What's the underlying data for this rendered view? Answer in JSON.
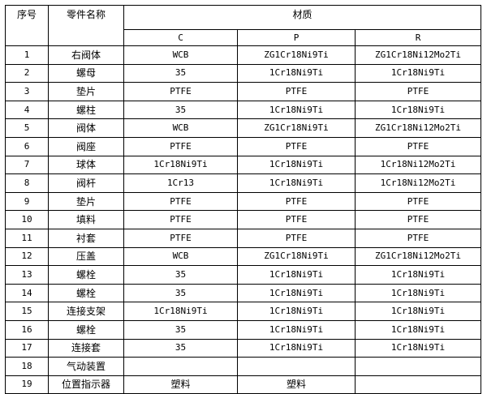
{
  "headers": {
    "index": "序号",
    "part_name": "零件名称",
    "material": "材质",
    "grades": [
      "C",
      "P",
      "R"
    ]
  },
  "rows": [
    {
      "no": "1",
      "name": "右阀体",
      "c": "WCB",
      "p": "ZG1Cr18Ni9Ti",
      "r": "ZG1Cr18Ni12Mo2Ti"
    },
    {
      "no": "2",
      "name": "螺母",
      "c": "35",
      "p": "1Cr18Ni9Ti",
      "r": "1Cr18Ni9Ti"
    },
    {
      "no": "3",
      "name": "垫片",
      "c": "PTFE",
      "p": "PTFE",
      "r": "PTFE"
    },
    {
      "no": "4",
      "name": "螺柱",
      "c": "35",
      "p": "1Cr18Ni9Ti",
      "r": "1Cr18Ni9Ti"
    },
    {
      "no": "5",
      "name": "阀体",
      "c": "WCB",
      "p": "ZG1Cr18Ni9Ti",
      "r": "ZG1Cr18Ni12Mo2Ti"
    },
    {
      "no": "6",
      "name": "阀座",
      "c": "PTFE",
      "p": "PTFE",
      "r": "PTFE"
    },
    {
      "no": "7",
      "name": "球体",
      "c": "1Cr18Ni9Ti",
      "p": "1Cr18Ni9Ti",
      "r": "1Cr18Ni12Mo2Ti"
    },
    {
      "no": "8",
      "name": "阀杆",
      "c": "1Cr13",
      "p": "1Cr18Ni9Ti",
      "r": "1Cr18Ni12Mo2Ti"
    },
    {
      "no": "9",
      "name": "垫片",
      "c": "PTFE",
      "p": "PTFE",
      "r": "PTFE"
    },
    {
      "no": "10",
      "name": "填料",
      "c": "PTFE",
      "p": "PTFE",
      "r": "PTFE"
    },
    {
      "no": "11",
      "name": "衬套",
      "c": "PTFE",
      "p": "PTFE",
      "r": "PTFE"
    },
    {
      "no": "12",
      "name": "压盖",
      "c": "WCB",
      "p": "ZG1Cr18Ni9Ti",
      "r": "ZG1Cr18Ni12Mo2Ti"
    },
    {
      "no": "13",
      "name": "螺栓",
      "c": "35",
      "p": "1Cr18Ni9Ti",
      "r": "1Cr18Ni9Ti"
    },
    {
      "no": "14",
      "name": "螺栓",
      "c": "35",
      "p": "1Cr18Ni9Ti",
      "r": "1Cr18Ni9Ti"
    },
    {
      "no": "15",
      "name": "连接支架",
      "c": "1Cr18Ni9Ti",
      "p": "1Cr18Ni9Ti",
      "r": "1Cr18Ni9Ti"
    },
    {
      "no": "16",
      "name": "螺栓",
      "c": "35",
      "p": "1Cr18Ni9Ti",
      "r": "1Cr18Ni9Ti"
    },
    {
      "no": "17",
      "name": "连接套",
      "c": "35",
      "p": "1Cr18Ni9Ti",
      "r": "1Cr18Ni9Ti"
    },
    {
      "no": "18",
      "name": "气动装置",
      "c": "",
      "p": "",
      "r": ""
    },
    {
      "no": "19",
      "name": "位置指示器",
      "c": "塑料",
      "p": "塑料",
      "r": ""
    }
  ]
}
